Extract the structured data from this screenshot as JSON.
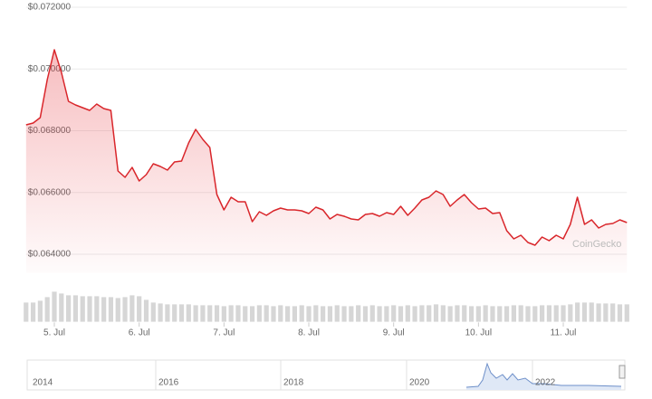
{
  "chart_data": {
    "type": "line",
    "x": [
      -8,
      -6,
      -4,
      -2,
      0,
      2,
      4,
      6,
      8,
      10,
      12,
      14,
      16,
      18,
      20,
      22,
      24,
      26,
      28,
      30,
      32,
      34,
      36,
      38,
      40,
      42,
      44,
      46,
      48,
      50,
      52,
      54,
      56,
      58,
      60,
      62,
      64,
      66,
      68,
      70,
      72,
      74,
      76,
      78,
      80,
      82,
      84,
      86,
      88,
      90,
      92,
      94,
      96,
      98,
      100,
      102,
      104,
      106,
      108,
      110,
      112,
      114,
      116,
      118,
      120,
      122,
      124,
      126,
      128,
      130,
      132,
      134,
      136,
      138,
      140,
      142,
      144,
      146,
      148,
      150,
      152,
      154,
      156,
      158,
      160,
      162
    ],
    "series": [
      {
        "name": "Price",
        "color": "#d9262b",
        "values": [
          0.068191,
          0.06825,
          0.068425,
          0.069656,
          0.070623,
          0.06989,
          0.068953,
          0.068836,
          0.068748,
          0.06866,
          0.068865,
          0.068718,
          0.06866,
          0.066697,
          0.066492,
          0.066814,
          0.066374,
          0.066579,
          0.066931,
          0.066843,
          0.066726,
          0.06699,
          0.067019,
          0.067605,
          0.068044,
          0.067722,
          0.067458,
          0.065935,
          0.065437,
          0.065847,
          0.0657,
          0.0657,
          0.065056,
          0.065378,
          0.065261,
          0.065407,
          0.065495,
          0.065437,
          0.065437,
          0.065407,
          0.06532,
          0.065525,
          0.065437,
          0.065144,
          0.06529,
          0.065232,
          0.065144,
          0.065114,
          0.06529,
          0.06532,
          0.065232,
          0.065349,
          0.06529,
          0.065554,
          0.065261,
          0.065495,
          0.065759,
          0.065847,
          0.066052,
          0.065935,
          0.065554,
          0.065759,
          0.065935,
          0.065671,
          0.065466,
          0.065495,
          0.06532,
          0.065349,
          0.064763,
          0.064499,
          0.064616,
          0.064382,
          0.064294,
          0.064558,
          0.064441,
          0.064616,
          0.064499,
          0.064968,
          0.065847,
          0.064968,
          0.065114,
          0.064851,
          0.064968,
          0.064997,
          0.065114,
          0.065027
        ]
      },
      {
        "name": "Volume",
        "color": "#d6d6d6",
        "values": [
          22,
          22,
          24,
          28,
          34,
          32,
          30,
          30,
          29,
          29,
          29,
          28,
          28,
          27,
          28,
          30,
          29,
          25,
          22,
          21,
          20,
          20,
          20,
          20,
          19,
          19,
          19,
          19,
          18,
          19,
          19,
          18,
          18,
          19,
          19,
          18,
          19,
          18,
          18,
          19,
          18,
          19,
          18,
          18,
          19,
          18,
          18,
          19,
          18,
          19,
          18,
          18,
          19,
          18,
          19,
          18,
          19,
          19,
          20,
          19,
          18,
          19,
          19,
          18,
          18,
          19,
          18,
          18,
          18,
          19,
          19,
          18,
          18,
          19,
          19,
          19,
          19,
          20,
          22,
          22,
          22,
          21,
          21,
          21,
          20,
          20
        ]
      }
    ],
    "ylim": [
      0.0634,
      0.072
    ],
    "yticks": [
      {
        "value": 0.064,
        "label": "$0.064000"
      },
      {
        "value": 0.066,
        "label": "$0.066000"
      },
      {
        "value": 0.068,
        "label": "$0.068000"
      },
      {
        "value": 0.07,
        "label": "$0.070000"
      },
      {
        "value": 0.072,
        "label": "$0.072000"
      }
    ],
    "xlim": [
      -8,
      162
    ],
    "xticks": [
      {
        "value": 0,
        "label": "5. Jul"
      },
      {
        "value": 24,
        "label": "6. Jul"
      },
      {
        "value": 48,
        "label": "7. Jul"
      },
      {
        "value": 72,
        "label": "8. Jul"
      },
      {
        "value": 96,
        "label": "9. Jul"
      },
      {
        "value": 120,
        "label": "10. Jul"
      },
      {
        "value": 144,
        "label": "11. Jul"
      }
    ],
    "volume_lim": [
      0,
      40
    ],
    "grid": true,
    "watermark": "CoinGecko"
  },
  "navigator": {
    "labels": [
      "2014",
      "2016",
      "2018",
      "2020",
      "2022"
    ]
  }
}
